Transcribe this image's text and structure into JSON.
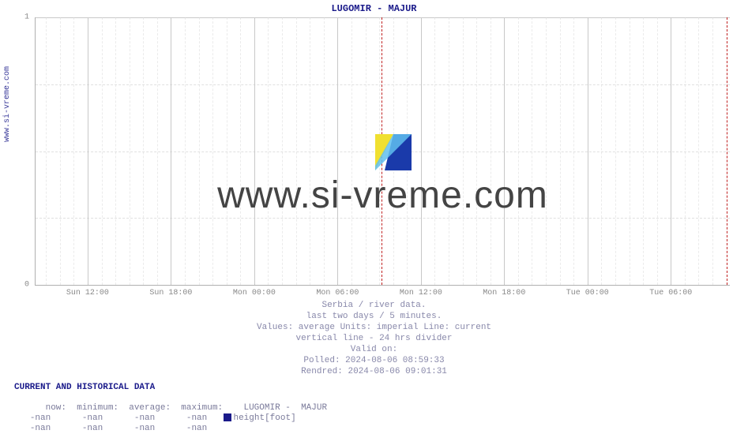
{
  "title": "LUGOMIR -  MAJUR",
  "ylabel_outer": "www.si-vreme.com",
  "watermark_text": "www.si-vreme.com",
  "chart": {
    "type": "line",
    "background_color": "#ffffff",
    "grid_color": "#d8d8d8",
    "axis_color": "#b0b0b0",
    "now_line_color": "#c02020",
    "font_family": "Courier New",
    "title_color": "#1a1a8a",
    "title_fontsize": 12,
    "tick_fontsize": 10,
    "tick_color": "#888888",
    "ylim": [
      0,
      1
    ],
    "yticks": [
      0,
      1
    ],
    "x_labels": [
      "Sun 12:00",
      "Sun 18:00",
      "Mon 00:00",
      "Mon 06:00",
      "Mon 12:00",
      "Mon 18:00",
      "Tue 00:00",
      "Tue 06:00"
    ],
    "x_positions_pct": [
      7.5,
      19.5,
      31.5,
      43.5,
      55.5,
      67.5,
      79.5,
      91.5
    ],
    "minor_x_positions_pct": [
      1.5,
      3.5,
      5.5,
      9.5,
      11.5,
      13.5,
      15.5,
      17.5,
      21.5,
      23.5,
      25.5,
      27.5,
      29.5,
      33.5,
      35.5,
      37.5,
      39.5,
      41.5,
      45.5,
      47.5,
      49.5,
      51.5,
      53.5,
      57.5,
      59.5,
      61.5,
      63.5,
      65.5,
      69.5,
      71.5,
      73.5,
      75.5,
      77.5,
      81.5,
      83.5,
      85.5,
      87.5,
      89.5,
      93.5,
      95.5,
      97.5,
      99.5
    ],
    "now_line_positions_pct": [
      49.8,
      99.6
    ],
    "watermark_fontsize": 48,
    "watermark_color": "#444444",
    "logo_colors": {
      "left": "#f0e030",
      "right": "#1a3aaa",
      "diag": "#60c0f0"
    }
  },
  "meta": {
    "line1": "Serbia / river data.",
    "line2": "last two days / 5 minutes.",
    "line3": "Values: average  Units: imperial  Line: current",
    "line4": "vertical line - 24 hrs  divider",
    "line5": "Valid on:",
    "line6": "Polled: 2024-08-06 08:59:33",
    "line7": "Rendred: 2024-08-06 09:01:31"
  },
  "table": {
    "header": "CURRENT AND HISTORICAL DATA",
    "cols": {
      "c1": "now:",
      "c2": "minimum:",
      "c3": "average:",
      "c4": "maximum:",
      "c5": "LUGOMIR -  MAJUR"
    },
    "row1": {
      "v1": "-nan",
      "v2": "-nan",
      "v3": "-nan",
      "v4": "-nan",
      "series": "height[foot]"
    },
    "row2": {
      "v1": "-nan",
      "v2": "-nan",
      "v3": "-nan",
      "v4": "-nan"
    },
    "swatch_color": "#1a1a8a"
  }
}
